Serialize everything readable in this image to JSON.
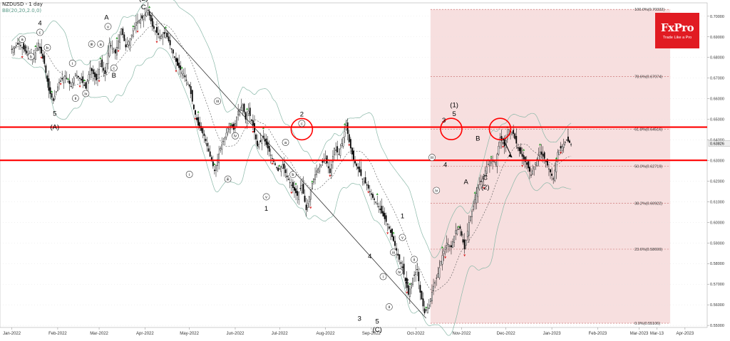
{
  "header": {
    "symbol_line": "NZDUSD - 1 day",
    "indicator_line": "BB(20,20,2.0,0)"
  },
  "brand": {
    "name": "FxPro",
    "tagline": "Trade Like a Pro",
    "color": "#e11b22"
  },
  "colors": {
    "up_candle": "#2a9d2a",
    "down_candle": "#d62424",
    "neutral_candle": "#000000",
    "bollinger": "#8ab8a8",
    "resistance_line": "#ff0000",
    "fib_zone": "#f6dcdc"
  },
  "chart_data": {
    "type": "candlestick",
    "symbol": "NZDUSD",
    "timeframe": "1 day",
    "indicator": "BB(20,20,2.0,0)",
    "ylim": [
      0.549,
      0.7065
    ],
    "y_ticks": [
      "0.70000",
      "0.69000",
      "0.68000",
      "0.67000",
      "0.66000",
      "0.65000",
      "0.64000",
      "0.63000",
      "0.62000",
      "0.61000",
      "0.60000",
      "0.59000",
      "0.58000",
      "0.57000",
      "0.56000",
      "0.55000"
    ],
    "y_tick_values": [
      0.7,
      0.69,
      0.68,
      0.67,
      0.66,
      0.65,
      0.64,
      0.63,
      0.62,
      0.61,
      0.6,
      0.59,
      0.58,
      0.57,
      0.56,
      0.55
    ],
    "x_labels": [
      "Jan-2022",
      "Feb-2022",
      "Mar-2022",
      "Apr-2022",
      "May-2022",
      "Jun-2022",
      "Jul-2022",
      "Aug-2022",
      "Sep-2022",
      "Oct-2022",
      "Nov-2022",
      "Dec-2022",
      "Jan-2023",
      "Feb-2023",
      "Mar-2023",
      "Mar-13",
      "Apr-2023"
    ],
    "x_label_days": [
      0,
      31,
      59,
      90,
      120,
      151,
      181,
      212,
      243,
      273,
      304,
      334,
      365,
      396,
      424,
      436,
      455
    ],
    "current_price": "0.63826",
    "current_price_value": 0.63826,
    "support_resistance": [
      0.6462,
      0.6301
    ],
    "fibonacci": [
      {
        "label": "100.0%(0.70332)",
        "value": 0.70332
      },
      {
        "label": "78.6%(0.67074)",
        "value": 0.67074
      },
      {
        "label": "61.8%(0.64516)",
        "value": 0.64516
      },
      {
        "label": "50.0%(0.62719)",
        "value": 0.62719
      },
      {
        "label": "38.2%(0.60922)",
        "value": 0.60922
      },
      {
        "label": "23.6%(0.58699)",
        "value": 0.58699
      },
      {
        "label": "0.0%(0.55106)",
        "value": 0.55106
      }
    ],
    "fib_range_days": [
      283,
      445
    ],
    "trendline": [
      {
        "day": 92,
        "price": 0.7033
      },
      {
        "day": 280,
        "price": 0.5535
      }
    ],
    "price_path": [
      [
        0,
        0.684
      ],
      [
        5,
        0.687
      ],
      [
        10,
        0.682
      ],
      [
        15,
        0.68
      ],
      [
        18,
        0.687
      ],
      [
        22,
        0.677
      ],
      [
        25,
        0.664
      ],
      [
        28,
        0.659
      ],
      [
        32,
        0.668
      ],
      [
        36,
        0.671
      ],
      [
        40,
        0.666
      ],
      [
        43,
        0.672
      ],
      [
        47,
        0.669
      ],
      [
        50,
        0.665
      ],
      [
        53,
        0.675
      ],
      [
        57,
        0.669
      ],
      [
        60,
        0.677
      ],
      [
        63,
        0.672
      ],
      [
        66,
        0.687
      ],
      [
        70,
        0.682
      ],
      [
        74,
        0.694
      ],
      [
        77,
        0.685
      ],
      [
        80,
        0.689
      ],
      [
        84,
        0.697
      ],
      [
        88,
        0.699
      ],
      [
        92,
        0.703
      ],
      [
        95,
        0.695
      ],
      [
        100,
        0.69
      ],
      [
        104,
        0.692
      ],
      [
        108,
        0.684
      ],
      [
        112,
        0.676
      ],
      [
        116,
        0.672
      ],
      [
        120,
        0.666
      ],
      [
        123,
        0.655
      ],
      [
        126,
        0.647
      ],
      [
        130,
        0.642
      ],
      [
        134,
        0.632
      ],
      [
        137,
        0.625
      ],
      [
        141,
        0.636
      ],
      [
        144,
        0.641
      ],
      [
        147,
        0.648
      ],
      [
        150,
        0.645
      ],
      [
        153,
        0.654
      ],
      [
        156,
        0.657
      ],
      [
        158,
        0.65
      ],
      [
        160,
        0.654
      ],
      [
        163,
        0.647
      ],
      [
        166,
        0.637
      ],
      [
        170,
        0.641
      ],
      [
        173,
        0.636
      ],
      [
        176,
        0.631
      ],
      [
        180,
        0.625
      ],
      [
        183,
        0.628
      ],
      [
        186,
        0.622
      ],
      [
        189,
        0.618
      ],
      [
        193,
        0.613
      ],
      [
        196,
        0.618
      ],
      [
        199,
        0.606
      ],
      [
        203,
        0.619
      ],
      [
        206,
        0.625
      ],
      [
        209,
        0.628
      ],
      [
        212,
        0.631
      ],
      [
        215,
        0.624
      ],
      [
        218,
        0.636
      ],
      [
        221,
        0.633
      ],
      [
        224,
        0.641
      ],
      [
        226,
        0.647
      ],
      [
        228,
        0.639
      ],
      [
        231,
        0.63
      ],
      [
        234,
        0.626
      ],
      [
        237,
        0.621
      ],
      [
        240,
        0.618
      ],
      [
        244,
        0.612
      ],
      [
        247,
        0.609
      ],
      [
        251,
        0.603
      ],
      [
        254,
        0.599
      ],
      [
        258,
        0.591
      ],
      [
        261,
        0.584
      ],
      [
        264,
        0.578
      ],
      [
        268,
        0.565
      ],
      [
        271,
        0.573
      ],
      [
        274,
        0.577
      ],
      [
        276,
        0.566
      ],
      [
        279,
        0.556
      ],
      [
        282,
        0.56
      ],
      [
        285,
        0.569
      ],
      [
        288,
        0.575
      ],
      [
        291,
        0.584
      ],
      [
        294,
        0.59
      ],
      [
        297,
        0.588
      ],
      [
        300,
        0.596
      ],
      [
        303,
        0.597
      ],
      [
        306,
        0.587
      ],
      [
        309,
        0.6
      ],
      [
        312,
        0.608
      ],
      [
        315,
        0.617
      ],
      [
        318,
        0.621
      ],
      [
        321,
        0.627
      ],
      [
        324,
        0.631
      ],
      [
        327,
        0.629
      ],
      [
        330,
        0.641
      ],
      [
        333,
        0.637
      ],
      [
        336,
        0.645
      ],
      [
        339,
        0.643
      ],
      [
        342,
        0.636
      ],
      [
        345,
        0.632
      ],
      [
        348,
        0.628
      ],
      [
        351,
        0.623
      ],
      [
        354,
        0.629
      ],
      [
        357,
        0.634
      ],
      [
        360,
        0.631
      ],
      [
        363,
        0.626
      ],
      [
        366,
        0.621
      ],
      [
        369,
        0.634
      ],
      [
        372,
        0.637
      ],
      [
        375,
        0.64
      ],
      [
        378,
        0.638
      ]
    ],
    "wave_labels": [
      {
        "text": "4",
        "day": 19,
        "price": 0.6966,
        "style": "plain"
      },
      {
        "text": "c",
        "day": 19,
        "price": 0.6922,
        "style": "circle"
      },
      {
        "text": "a",
        "day": 7,
        "price": 0.6888,
        "style": "circle"
      },
      {
        "text": "b",
        "day": 24,
        "price": 0.6848,
        "style": "circle"
      },
      {
        "text": "b",
        "day": 13,
        "price": 0.6805,
        "style": "circle"
      },
      {
        "text": "i",
        "day": 41,
        "price": 0.6772,
        "style": "circle"
      },
      {
        "text": "ii",
        "day": 43,
        "price": 0.6602,
        "style": "circle"
      },
      {
        "text": "iv",
        "day": 50,
        "price": 0.6625,
        "style": "circle"
      },
      {
        "text": "5",
        "day": 29,
        "price": 0.6528,
        "style": "plain"
      },
      {
        "text": "(A)",
        "day": 29,
        "price": 0.6462,
        "style": "plain"
      },
      {
        "text": "iii",
        "day": 54,
        "price": 0.6865,
        "style": "circle"
      },
      {
        "text": "A",
        "day": 64,
        "price": 0.6995,
        "style": "plain"
      },
      {
        "text": "v",
        "day": 65,
        "price": 0.695,
        "style": "circle"
      },
      {
        "text": "a",
        "day": 60,
        "price": 0.6865,
        "style": "circle"
      },
      {
        "text": "c",
        "day": 69,
        "price": 0.6749,
        "style": "circle"
      },
      {
        "text": "B",
        "day": 69,
        "price": 0.6712,
        "style": "plain"
      },
      {
        "text": "(B)",
        "day": 89,
        "price": 0.7085,
        "style": "plain"
      },
      {
        "text": "C",
        "day": 89,
        "price": 0.7044,
        "style": "plain"
      },
      {
        "text": "iii",
        "day": 139,
        "price": 0.6588,
        "style": "circle"
      },
      {
        "text": "iv",
        "day": 151,
        "price": 0.642,
        "style": "circle"
      },
      {
        "text": "i",
        "day": 120,
        "price": 0.6233,
        "style": "circle"
      },
      {
        "text": "iii",
        "day": 146,
        "price": 0.621,
        "style": "circle"
      },
      {
        "text": "v",
        "day": 172,
        "price": 0.6124,
        "style": "circle"
      },
      {
        "text": "1",
        "day": 172,
        "price": 0.6067,
        "style": "plain"
      },
      {
        "text": "2",
        "day": 196,
        "price": 0.6524,
        "style": "plain"
      },
      {
        "text": "c",
        "day": 196,
        "price": 0.648,
        "style": "circle"
      },
      {
        "text": "a",
        "day": 185,
        "price": 0.6388,
        "style": "circle"
      },
      {
        "text": "b",
        "day": 190,
        "price": 0.6232,
        "style": "circle"
      },
      {
        "text": "4",
        "day": 242,
        "price": 0.5836,
        "style": "plain"
      },
      {
        "text": "3",
        "day": 235,
        "price": 0.5534,
        "style": "plain"
      },
      {
        "text": "5",
        "day": 247,
        "price": 0.552,
        "style": "plain"
      },
      {
        "text": "(C)",
        "day": 247,
        "price": 0.548,
        "style": "plain"
      },
      {
        "text": "i",
        "day": 251,
        "price": 0.5737,
        "style": "circle"
      },
      {
        "text": "ii",
        "day": 255,
        "price": 0.559,
        "style": "circle"
      },
      {
        "text": "iii",
        "day": 258,
        "price": 0.5855,
        "style": "circle"
      },
      {
        "text": "iv",
        "day": 262,
        "price": 0.576,
        "style": "circle"
      },
      {
        "text": "v",
        "day": 264,
        "price": 0.5927,
        "style": "circle"
      },
      {
        "text": "1",
        "day": 264,
        "price": 0.603,
        "style": "plain"
      },
      {
        "text": "ii",
        "day": 272,
        "price": 0.582,
        "style": "circle"
      },
      {
        "text": "2",
        "day": 267,
        "price": 0.5715,
        "style": "plain"
      },
      {
        "text": "iii",
        "day": 284,
        "price": 0.6315,
        "style": "circle"
      },
      {
        "text": "iv",
        "day": 287,
        "price": 0.6155,
        "style": "circle"
      },
      {
        "text": "4",
        "day": 293,
        "price": 0.628,
        "style": "plain"
      },
      {
        "text": "3",
        "day": 292,
        "price": 0.6495,
        "style": "plain"
      },
      {
        "text": "5",
        "day": 299,
        "price": 0.6527,
        "style": "plain"
      },
      {
        "text": "(1)",
        "day": 299,
        "price": 0.657,
        "style": "plain"
      },
      {
        "text": "B",
        "day": 315,
        "price": 0.6407,
        "style": "plain"
      },
      {
        "text": "A",
        "day": 307,
        "price": 0.6196,
        "style": "plain"
      },
      {
        "text": "C",
        "day": 320,
        "price": 0.6217,
        "style": "plain"
      },
      {
        "text": "(2)",
        "day": 320,
        "price": 0.617,
        "style": "plain"
      }
    ],
    "highlight_circles": [
      {
        "day": 196,
        "price": 0.6452
      },
      {
        "day": 297,
        "price": 0.6453
      },
      {
        "day": 330,
        "price": 0.6453
      }
    ],
    "projection_arrow": {
      "from": {
        "day": 332,
        "price": 0.6408
      },
      "to": {
        "day": 338,
        "price": 0.6315
      }
    }
  }
}
